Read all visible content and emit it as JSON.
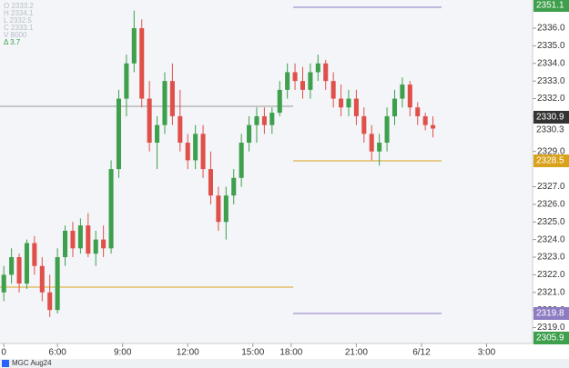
{
  "chart_data": {
    "type": "candlestick",
    "symbol": "MGC Aug24",
    "legend_text": [
      "O 2333.2",
      "H 2334.1",
      "L 2332.5",
      "C 2333.1",
      "V 8000",
      "Δ 3.7"
    ],
    "up_color": "#3e9f4c",
    "down_color": "#e0504a",
    "open": [
      2321.0,
      2322.0,
      2323.0,
      2321.5,
      2323.8,
      2322.5,
      2321.0,
      2320.0,
      2323.0,
      2324.5,
      2323.5,
      2324.8,
      2323.2,
      2324.0,
      2323.5,
      2328.0,
      2332.0,
      2334.0,
      2336.0,
      2332.0,
      2329.5,
      2330.5,
      2333.0,
      2331.0,
      2329.5,
      2328.5,
      2330.0,
      2328.0,
      2326.5,
      2325.0,
      2326.5,
      2327.5,
      2329.5,
      2330.5,
      2331.0,
      2330.5,
      2331.2,
      2332.5,
      2333.5,
      2333.0,
      2332.5,
      2333.5,
      2334.0,
      2333.0,
      2332.0,
      2331.5,
      2332.0,
      2331.0,
      2330.0,
      2329.0,
      2329.5,
      2331.0,
      2332.0,
      2332.8,
      2331.5,
      2331.0,
      2330.5
    ],
    "high": [
      2322.5,
      2323.5,
      2323.2,
      2324.0,
      2324.2,
      2323.0,
      2322.0,
      2323.5,
      2324.8,
      2325.0,
      2325.2,
      2325.5,
      2324.5,
      2324.8,
      2328.5,
      2332.5,
      2334.5,
      2337.0,
      2336.5,
      2333.0,
      2331.0,
      2333.5,
      2334.0,
      2332.5,
      2330.0,
      2330.5,
      2330.5,
      2329.0,
      2327.0,
      2327.0,
      2328.0,
      2330.0,
      2331.0,
      2331.5,
      2331.5,
      2331.5,
      2333.0,
      2334.0,
      2334.0,
      2333.8,
      2334.0,
      2334.5,
      2334.2,
      2333.5,
      2332.8,
      2332.5,
      2332.5,
      2331.5,
      2330.5,
      2330.0,
      2331.5,
      2332.5,
      2333.2,
      2333.0,
      2331.8,
      2331.2,
      2331.0
    ],
    "low": [
      2320.5,
      2321.5,
      2321.0,
      2321.2,
      2322.0,
      2320.5,
      2319.6,
      2319.8,
      2322.5,
      2323.0,
      2323.2,
      2323.0,
      2322.5,
      2323.0,
      2323.2,
      2327.5,
      2331.0,
      2333.5,
      2331.5,
      2329.0,
      2328.0,
      2330.0,
      2330.5,
      2329.0,
      2328.0,
      2328.0,
      2327.5,
      2326.0,
      2324.5,
      2324.0,
      2326.0,
      2327.0,
      2329.0,
      2329.5,
      2330.0,
      2330.0,
      2331.0,
      2332.0,
      2332.5,
      2332.0,
      2332.0,
      2333.0,
      2332.5,
      2331.5,
      2331.0,
      2331.0,
      2330.5,
      2329.5,
      2328.5,
      2328.2,
      2329.0,
      2330.5,
      2331.5,
      2331.0,
      2330.5,
      2330.2,
      2329.8
    ],
    "close": [
      2322.0,
      2323.0,
      2321.5,
      2323.8,
      2322.5,
      2321.0,
      2320.0,
      2323.0,
      2324.5,
      2323.5,
      2324.8,
      2323.2,
      2324.0,
      2323.5,
      2328.0,
      2332.0,
      2334.0,
      2336.0,
      2332.0,
      2329.5,
      2330.5,
      2333.0,
      2331.0,
      2329.5,
      2328.5,
      2330.0,
      2328.0,
      2326.5,
      2325.0,
      2326.5,
      2327.5,
      2329.5,
      2330.5,
      2331.0,
      2330.5,
      2331.2,
      2332.5,
      2333.5,
      2333.0,
      2332.5,
      2333.5,
      2334.0,
      2333.0,
      2332.0,
      2331.5,
      2332.0,
      2331.0,
      2330.0,
      2329.0,
      2329.5,
      2331.0,
      2332.0,
      2332.8,
      2331.5,
      2331.0,
      2330.5,
      2330.3
    ],
    "xlim": [
      -0.5,
      69
    ],
    "xticks": [
      {
        "value": 0,
        "label": "0"
      },
      {
        "value": 7,
        "label": "6:00"
      },
      {
        "value": 15.5,
        "label": "9:00"
      },
      {
        "value": 24,
        "label": "12:00"
      },
      {
        "value": 32.5,
        "label": "15:00"
      },
      {
        "value": 37.5,
        "label": "18:00"
      },
      {
        "value": 46,
        "label": "21:00"
      },
      {
        "value": 54.5,
        "label": "6/12"
      },
      {
        "value": 63,
        "label": "3:00"
      }
    ],
    "ylim": [
      2318.1,
      2337.6
    ],
    "yticks": [
      {
        "value": 2319,
        "label": "2319.0"
      },
      {
        "value": 2320,
        "label": "2320.0"
      },
      {
        "value": 2321,
        "label": "2321.0"
      },
      {
        "value": 2322,
        "label": "2322.0"
      },
      {
        "value": 2323,
        "label": "2323.0"
      },
      {
        "value": 2324,
        "label": "2324.0"
      },
      {
        "value": 2325,
        "label": "2325.0"
      },
      {
        "value": 2326,
        "label": "2326.0"
      },
      {
        "value": 2327,
        "label": "2327.0"
      },
      {
        "value": 2329,
        "label": "2329.0"
      },
      {
        "value": 2331,
        "label": "2331.0"
      },
      {
        "value": 2332,
        "label": "2332.0"
      },
      {
        "value": 2333,
        "label": "2333.0"
      },
      {
        "value": 2334,
        "label": "2334.0"
      },
      {
        "value": 2335,
        "label": "2335.0"
      },
      {
        "value": 2336,
        "label": "2336.0"
      }
    ],
    "price_tags": [
      {
        "label": "2351.1",
        "color": "#3e9f4c"
      },
      {
        "label": "2330.9",
        "color": "#333333"
      },
      {
        "label": "2330.3",
        "color": "#ffffff"
      },
      {
        "label": "2328.5",
        "color": "#d9a21b"
      },
      {
        "label": "2319.8",
        "color": "#8e7cc3"
      },
      {
        "label": "2305.9",
        "color": "#3e9f4c"
      }
    ]
  }
}
